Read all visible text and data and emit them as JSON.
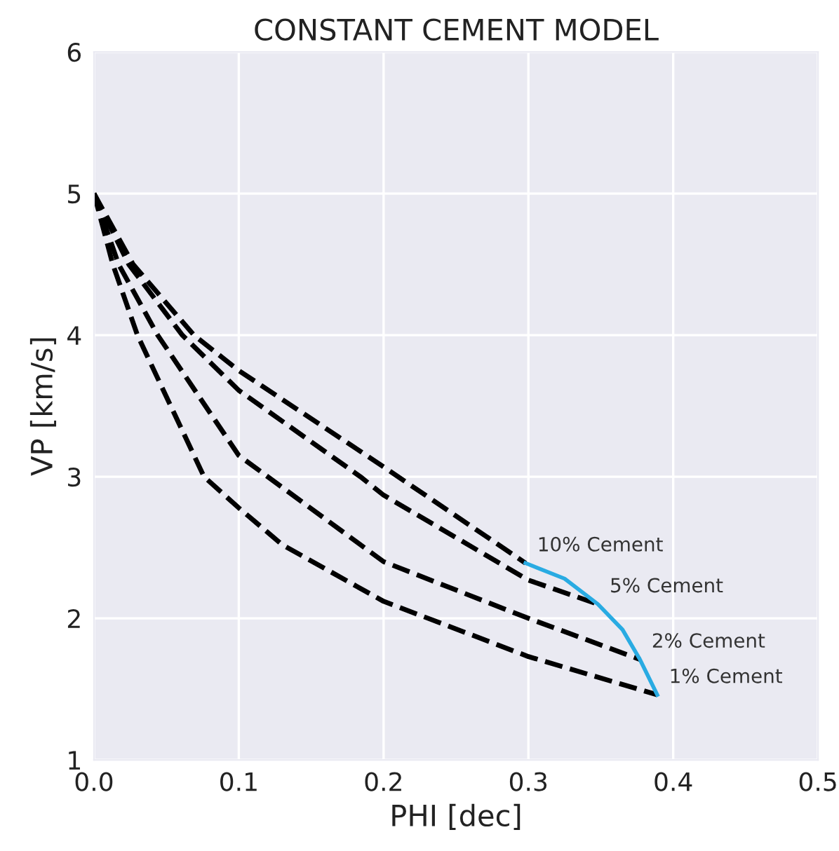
{
  "chart_data": {
    "type": "line",
    "title": "CONSTANT CEMENT MODEL",
    "xlabel": "PHI [dec]",
    "ylabel": "VP [km/s]",
    "xlim": [
      0,
      0.5
    ],
    "ylim": [
      1,
      6
    ],
    "xticks": [
      {
        "value": 0,
        "label": "0.0"
      },
      0.1,
      0.2,
      0.3,
      0.4,
      0.5
    ],
    "yticks": [
      1,
      2,
      3,
      4,
      5,
      6
    ],
    "grid": true,
    "line_style": "dashed",
    "marker": "none",
    "series": [
      {
        "name": "10% Cement",
        "color": "#000000",
        "x": [
          0,
          0.027,
          0.069,
          0.1,
          0.2,
          0.298
        ],
        "values": [
          5,
          4.5,
          4,
          3.75,
          3.07,
          2.39
        ]
      },
      {
        "name": "5% Cement",
        "color": "#000000",
        "x": [
          0,
          0.024,
          0.061,
          0.1,
          0.184,
          0.2,
          0.3,
          0.348
        ],
        "values": [
          5,
          4.5,
          4,
          3.61,
          3,
          2.87,
          2.27,
          2.1
        ]
      },
      {
        "name": "2% Cement",
        "color": "#000000",
        "x": [
          0,
          0.017,
          0.044,
          0.1,
          0.2,
          0.3,
          0.377
        ],
        "values": [
          5,
          4.5,
          4,
          3.15,
          2.4,
          2.0,
          1.71
        ]
      },
      {
        "name": "1% Cement",
        "color": "#000000",
        "x": [
          0,
          0.013,
          0.03,
          0.076,
          0.1,
          0.13,
          0.2,
          0.3,
          0.389
        ],
        "values": [
          5,
          4.5,
          4,
          3,
          2.78,
          2.52,
          2.12,
          1.73,
          1.46
        ]
      },
      {
        "color": "#29abe2",
        "line_style": "solid",
        "x": [
          0.298,
          0.325,
          0.348,
          0.365,
          0.377,
          0.389
        ],
        "values": [
          2.39,
          2.28,
          2.1,
          1.92,
          1.71,
          1.46
        ]
      }
    ]
  }
}
